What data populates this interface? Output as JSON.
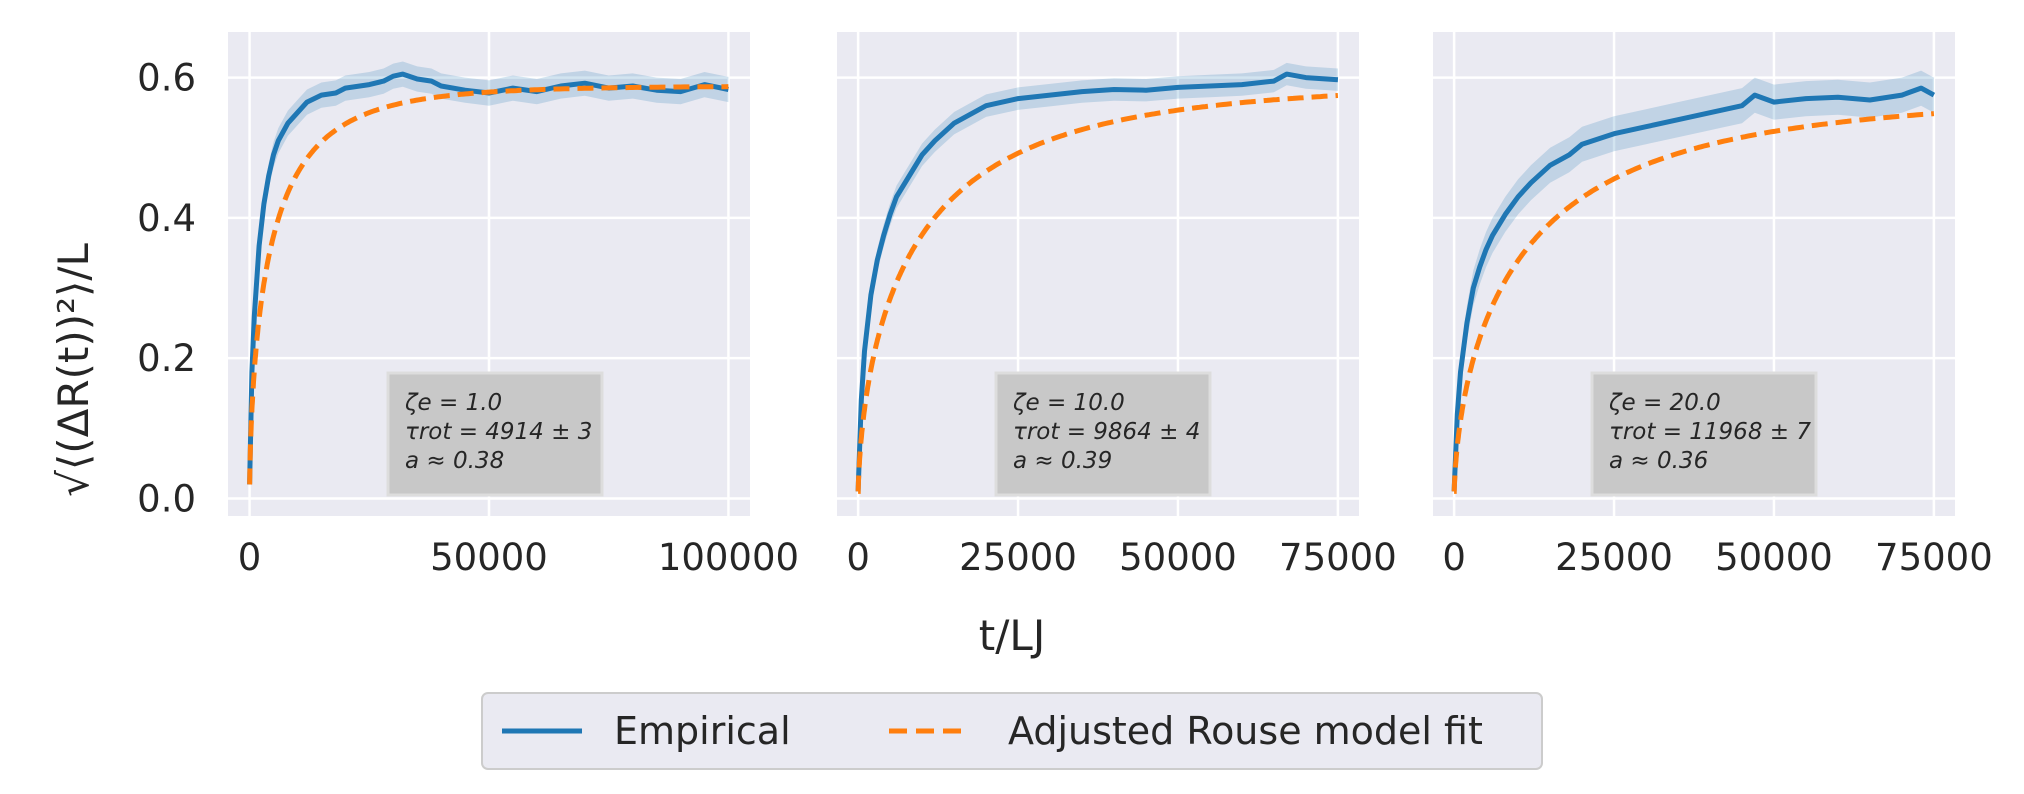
{
  "figure": {
    "xlabel": "t/LJ",
    "ylabel": "√⟨(ΔR(t))²⟩/L",
    "legend": [
      {
        "label": "Empirical",
        "color": "#1f77b4",
        "style": "solid"
      },
      {
        "label": "Adjusted Rouse model fit",
        "color": "#ff7f0e",
        "style": "dashed"
      }
    ],
    "legend_placement": "bottom-center, below plots"
  },
  "chart_data": [
    {
      "type": "line",
      "grid": true,
      "xlim": [
        -4500,
        104500
      ],
      "ylim": [
        -0.025,
        0.665
      ],
      "xticks": [
        0,
        50000,
        100000
      ],
      "xtick_labels": [
        "0",
        "50000",
        "100000"
      ],
      "yticks": [
        0.0,
        0.2,
        0.4,
        0.6
      ],
      "ytick_labels": [
        "0.0",
        "0.2",
        "0.4",
        "0.6"
      ],
      "annotation": [
        "ζe = 1.0",
        "τrot = 4914 ± 3",
        "a ≈ 0.38"
      ],
      "series": [
        {
          "name": "Empirical",
          "color": "#1f77b4",
          "x": [
            0,
            500,
            1000,
            2000,
            3000,
            4000,
            5000,
            6000,
            8000,
            10000,
            12000,
            15000,
            18000,
            20000,
            25000,
            28000,
            30000,
            32000,
            35000,
            38000,
            40000,
            45000,
            50000,
            55000,
            60000,
            65000,
            70000,
            75000,
            80000,
            85000,
            90000,
            95000,
            100000
          ],
          "y": [
            0.02,
            0.18,
            0.26,
            0.36,
            0.42,
            0.46,
            0.49,
            0.51,
            0.535,
            0.55,
            0.565,
            0.575,
            0.578,
            0.585,
            0.59,
            0.595,
            0.602,
            0.605,
            0.598,
            0.595,
            0.588,
            0.582,
            0.578,
            0.585,
            0.58,
            0.588,
            0.592,
            0.585,
            0.588,
            0.582,
            0.58,
            0.59,
            0.583
          ],
          "band_halfwidth": 0.018
        },
        {
          "name": "Adjusted Rouse model fit",
          "color": "#ff7f0e",
          "fit": {
            "plateau": 0.588,
            "tau": 4914,
            "a": 0.38
          }
        }
      ]
    },
    {
      "type": "line",
      "grid": true,
      "xlim": [
        -3300,
        78300
      ],
      "ylim": [
        -0.025,
        0.665
      ],
      "xticks": [
        0,
        25000,
        50000,
        75000
      ],
      "xtick_labels": [
        "0",
        "25000",
        "50000",
        "75000"
      ],
      "yticks": [
        0.0,
        0.2,
        0.4,
        0.6
      ],
      "ytick_labels": [
        "",
        "",
        "",
        ""
      ],
      "annotation": [
        "ζe = 10.0",
        "τrot = 9864 ± 4",
        "a ≈ 0.39"
      ],
      "series": [
        {
          "name": "Empirical",
          "color": "#1f77b4",
          "x": [
            0,
            500,
            1000,
            2000,
            3000,
            4000,
            5000,
            6000,
            8000,
            10000,
            12000,
            15000,
            18000,
            20000,
            25000,
            30000,
            35000,
            40000,
            45000,
            50000,
            55000,
            60000,
            65000,
            67000,
            70000,
            75000
          ],
          "y": [
            0.01,
            0.14,
            0.21,
            0.29,
            0.34,
            0.375,
            0.405,
            0.43,
            0.46,
            0.49,
            0.51,
            0.535,
            0.55,
            0.56,
            0.57,
            0.575,
            0.58,
            0.583,
            0.582,
            0.586,
            0.588,
            0.59,
            0.595,
            0.605,
            0.6,
            0.597
          ],
          "band_halfwidth": 0.016
        },
        {
          "name": "Adjusted Rouse model fit",
          "color": "#ff7f0e",
          "fit": {
            "plateau": 0.592,
            "tau": 9864,
            "a": 0.39
          }
        }
      ]
    },
    {
      "type": "line",
      "grid": true,
      "xlim": [
        -3300,
        78300
      ],
      "ylim": [
        -0.025,
        0.665
      ],
      "xticks": [
        0,
        25000,
        50000,
        75000
      ],
      "xtick_labels": [
        "0",
        "25000",
        "50000",
        "75000"
      ],
      "yticks": [
        0.0,
        0.2,
        0.4,
        0.6
      ],
      "ytick_labels": [
        "",
        "",
        "",
        ""
      ],
      "annotation": [
        "ζe = 20.0",
        "τrot = 11968 ± 7",
        "a ≈ 0.36"
      ],
      "series": [
        {
          "name": "Empirical",
          "color": "#1f77b4",
          "x": [
            0,
            500,
            1000,
            2000,
            3000,
            4000,
            5000,
            6000,
            8000,
            10000,
            12000,
            15000,
            18000,
            20000,
            25000,
            30000,
            35000,
            40000,
            45000,
            47000,
            50000,
            55000,
            60000,
            65000,
            70000,
            73000,
            75000
          ],
          "y": [
            0.01,
            0.12,
            0.18,
            0.25,
            0.3,
            0.33,
            0.355,
            0.375,
            0.405,
            0.43,
            0.45,
            0.475,
            0.49,
            0.505,
            0.52,
            0.53,
            0.54,
            0.55,
            0.56,
            0.575,
            0.565,
            0.57,
            0.572,
            0.568,
            0.575,
            0.585,
            0.575
          ],
          "band_halfwidth": 0.025
        },
        {
          "name": "Adjusted Rouse model fit",
          "color": "#ff7f0e",
          "fit": {
            "plateau": 0.574,
            "tau": 11968,
            "a": 0.36
          }
        }
      ]
    }
  ]
}
